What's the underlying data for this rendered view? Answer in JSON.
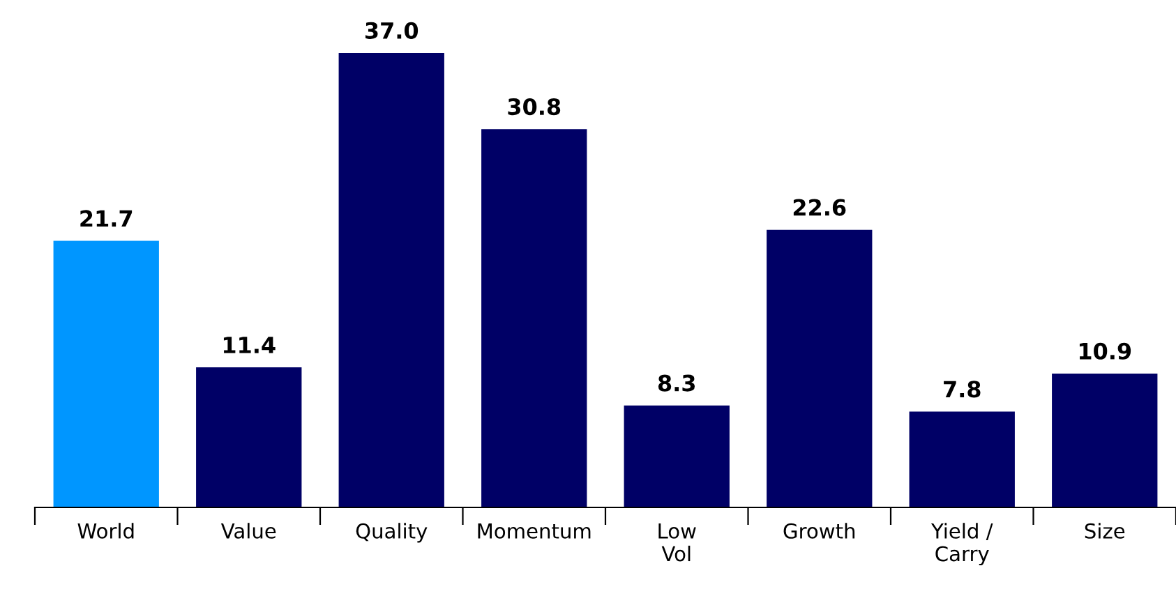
{
  "chart_data": {
    "type": "bar",
    "categories": [
      "World",
      "Value",
      "Quality",
      "Momentum",
      "Low\nVol",
      "Growth",
      "Yield /\nCarry",
      "Size"
    ],
    "values": [
      21.7,
      11.4,
      37.0,
      30.8,
      8.3,
      22.6,
      7.8,
      10.9
    ],
    "colors": [
      "#0096ff",
      "#000066",
      "#000066",
      "#000066",
      "#000066",
      "#000066",
      "#000066",
      "#000066"
    ],
    "value_labels": [
      "21.7",
      "11.4",
      "37.0",
      "30.8",
      "8.3",
      "22.6",
      "7.8",
      "10.9"
    ],
    "tick_labels": "x",
    "grid": false,
    "legend": false
  }
}
